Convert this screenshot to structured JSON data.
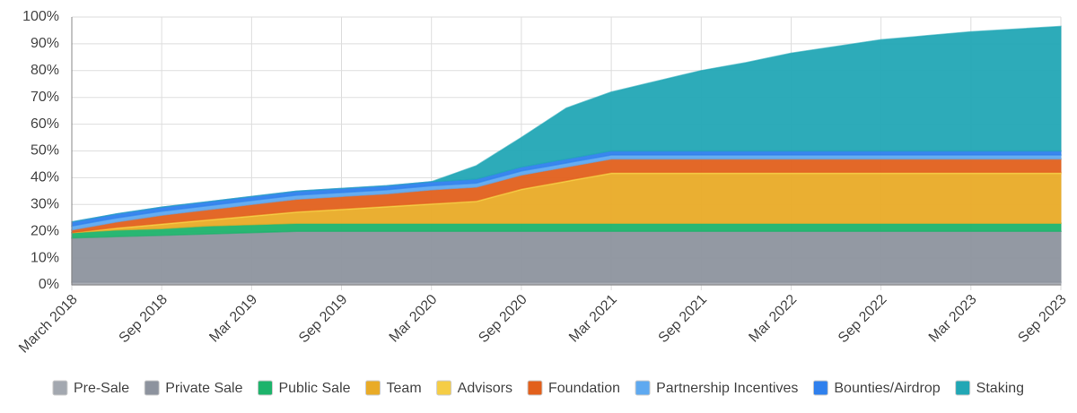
{
  "chart_data": {
    "type": "stacked-area",
    "categories": [
      "March 2018",
      null,
      "Sep 2018",
      null,
      "Mar 2019",
      null,
      "Sep 2019",
      null,
      "Mar 2020",
      null,
      "Sep 2020",
      null,
      "Mar 2021",
      null,
      "Sep 2021",
      null,
      "Mar 2022",
      null,
      "Sep 2022",
      null,
      "Mar 2023",
      null,
      "Sep 2023"
    ],
    "ylim": [
      0,
      100
    ],
    "yticks": [
      {
        "value": 0,
        "label": "0%"
      },
      {
        "value": 10,
        "label": "10%"
      },
      {
        "value": 20,
        "label": "20%"
      },
      {
        "value": 30,
        "label": "30%"
      },
      {
        "value": 40,
        "label": "40%"
      },
      {
        "value": 50,
        "label": "50%"
      },
      {
        "value": 60,
        "label": "60%"
      },
      {
        "value": 70,
        "label": "70%"
      },
      {
        "value": 80,
        "label": "80%"
      },
      {
        "value": 90,
        "label": "90%"
      },
      {
        "value": 100,
        "label": "100%"
      }
    ],
    "grid": true,
    "legend": "bottom",
    "series": [
      {
        "name": "Pre-Sale",
        "color": "#a3a8b0",
        "values": [
          1,
          1,
          1,
          1,
          1,
          1,
          1,
          1,
          1,
          1,
          1,
          1,
          1,
          1,
          1,
          1,
          1,
          1,
          1,
          1,
          1,
          1,
          1
        ]
      },
      {
        "name": "Private Sale",
        "color": "#8d939e",
        "values": [
          16.5,
          17,
          17.5,
          18,
          18.5,
          19,
          19,
          19,
          19,
          19,
          19,
          19,
          19,
          19,
          19,
          19,
          19,
          19,
          19,
          19,
          19,
          19,
          19
        ]
      },
      {
        "name": "Public Sale",
        "color": "#1db36b",
        "values": [
          2,
          2.5,
          2.5,
          3,
          3,
          3,
          3,
          3,
          3,
          3,
          3,
          3,
          3,
          3,
          3,
          3,
          3,
          3,
          3,
          3,
          3,
          3,
          3
        ]
      },
      {
        "name": "Team",
        "color": "#e9ab27",
        "values": [
          0,
          0.5,
          1.5,
          2,
          3,
          4,
          5,
          6,
          7,
          8,
          12.5,
          15.5,
          18.5,
          18.5,
          18.5,
          18.5,
          18.5,
          18.5,
          18.5,
          18.5,
          18.5,
          18.5,
          18.5
        ]
      },
      {
        "name": "Advisors",
        "color": "#f5cd45",
        "values": [
          0,
          0.5,
          0.5,
          0.5,
          0.5,
          0.5,
          0.5,
          0.5,
          0.5,
          0.5,
          0.5,
          0.5,
          0.5,
          0.5,
          0.5,
          0.5,
          0.5,
          0.5,
          0.5,
          0.5,
          0.5,
          0.5,
          0.5
        ]
      },
      {
        "name": "Foundation",
        "color": "#e2601c",
        "values": [
          1,
          2,
          3,
          3.5,
          4,
          4.5,
          4.5,
          4.5,
          5,
          5,
          5,
          5,
          5,
          5,
          5,
          5,
          5,
          5,
          5,
          5,
          5,
          5,
          5
        ]
      },
      {
        "name": "Partnership Incentives",
        "color": "#5ea9f0",
        "values": [
          1.5,
          1.5,
          1.5,
          1.5,
          1.5,
          1.5,
          1.5,
          1.5,
          1.5,
          1.5,
          1.5,
          1.5,
          1.5,
          1.5,
          1.5,
          1.5,
          1.5,
          1.5,
          1.5,
          1.5,
          1.5,
          1.5,
          1.5
        ]
      },
      {
        "name": "Bounties/Airdrop",
        "color": "#2f80ed",
        "values": [
          1.5,
          1.5,
          1.5,
          1.5,
          1.5,
          1.5,
          1.5,
          1.5,
          1.5,
          1.5,
          1.5,
          1.5,
          1.5,
          1.5,
          1.5,
          1.5,
          1.5,
          1.5,
          1.5,
          1.5,
          1.5,
          1.5,
          1.5
        ]
      },
      {
        "name": "Staking",
        "color": "#22a7b5",
        "values": [
          0,
          0,
          0,
          0,
          0,
          0,
          0,
          0,
          0,
          5,
          11,
          19,
          22,
          26,
          30,
          33,
          36.5,
          39,
          41.5,
          43,
          44.5,
          45.5,
          46.5
        ]
      }
    ]
  }
}
